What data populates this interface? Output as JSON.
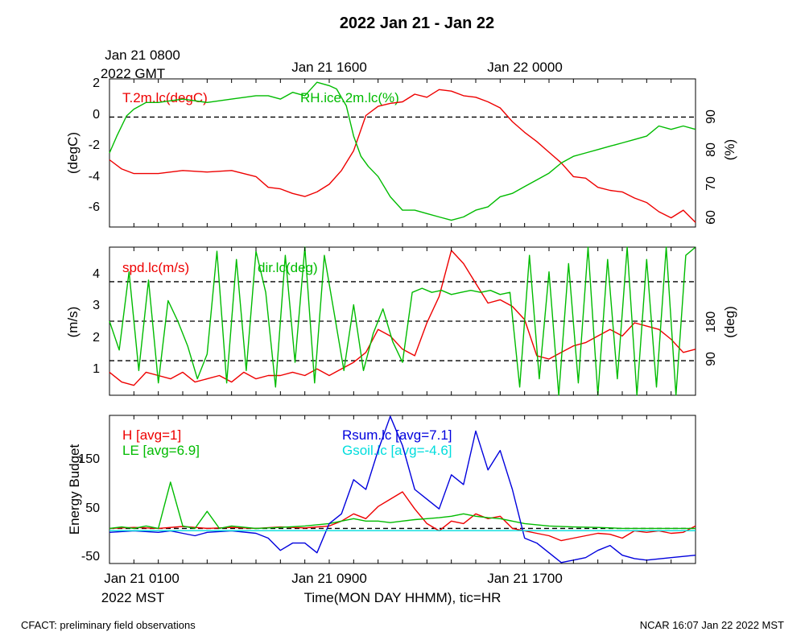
{
  "figure": {
    "title": "2022 Jan 21 - Jan 22",
    "top_axis_start_label": "Jan 21 0800",
    "top_axis_year_label": "2022 GMT",
    "top_axis_ticks": [
      "Jan 21 1600",
      "Jan 22 0000"
    ],
    "bottom_axis_ticks": [
      "Jan 21 0100",
      "Jan 21 0900",
      "Jan 21 1700"
    ],
    "bottom_axis_year_label": "2022 MST",
    "xlabel": "Time(MON DAY HHMM), tic=HR",
    "footer_left": "CFACT: preliminary field observations",
    "footer_right": "NCAR 16:07 Jan 22 2022 MST"
  },
  "chart_data": [
    {
      "type": "line",
      "x_range_hours_mst": [
        0,
        24
      ],
      "ylabel_left": "(degC)",
      "ylabel_right": "(%)",
      "ylim_left": [
        -7.2,
        2.5
      ],
      "ylim_right": [
        57,
        101
      ],
      "yticks_left": [
        "2",
        "0",
        "-2",
        "-4",
        "-6"
      ],
      "yticks_right": [
        "90",
        "80",
        "70",
        "60"
      ],
      "reference_lines_left": [
        0
      ],
      "series": [
        {
          "name": "T.2m.lc(degC)",
          "axis": "left",
          "color": "#ee0000",
          "x": [
            0,
            0.5,
            1,
            2,
            3,
            4,
            5,
            6,
            6.5,
            7,
            7.5,
            8,
            8.5,
            9,
            9.5,
            10,
            10.5,
            11,
            11.5,
            12,
            12.5,
            13,
            13.5,
            14,
            14.5,
            15,
            15.5,
            16,
            16.5,
            17,
            17.5,
            18,
            18.5,
            19,
            19.5,
            20,
            20.5,
            21,
            21.5,
            22,
            22.5,
            23,
            23.5,
            24
          ],
          "values": [
            -2.8,
            -3.4,
            -3.7,
            -3.7,
            -3.5,
            -3.6,
            -3.5,
            -3.9,
            -4.6,
            -4.7,
            -5.0,
            -5.2,
            -4.9,
            -4.4,
            -3.5,
            -2.2,
            0.1,
            0.7,
            0.9,
            1.0,
            1.5,
            1.3,
            1.8,
            1.7,
            1.4,
            1.3,
            1.0,
            0.6,
            -0.3,
            -1.0,
            -1.6,
            -2.3,
            -3.0,
            -3.9,
            -4.0,
            -4.6,
            -4.8,
            -4.9,
            -5.3,
            -5.6,
            -6.2,
            -6.6,
            -6.1,
            -6.9
          ]
        },
        {
          "name": "RH.ice.2m.lc(%)",
          "axis": "right",
          "color": "#00bb00",
          "x": [
            0,
            0.3,
            0.7,
            1,
            1.5,
            2,
            3,
            4,
            5,
            6,
            6.5,
            7,
            7.5,
            8,
            8.5,
            9,
            9.3,
            9.7,
            10,
            10.3,
            10.6,
            11,
            11.5,
            12,
            12.5,
            13,
            13.5,
            14,
            14.5,
            15,
            15.5,
            16,
            16.5,
            17,
            17.5,
            18,
            18.5,
            19,
            19.5,
            20,
            20.5,
            21,
            21.5,
            22,
            22.5,
            23,
            23.5,
            24
          ],
          "values": [
            79,
            84,
            90,
            92,
            94,
            94,
            95,
            94,
            95,
            96,
            96,
            95,
            97,
            96,
            100,
            99,
            98,
            93,
            84,
            78,
            75,
            72,
            66,
            62,
            62,
            61,
            60,
            59,
            60,
            62,
            63,
            66,
            67,
            69,
            71,
            73,
            76,
            78,
            79,
            80,
            81,
            82,
            83,
            84,
            87,
            86,
            87,
            86
          ]
        }
      ]
    },
    {
      "type": "line",
      "x_range_hours_mst": [
        0,
        24
      ],
      "ylabel_left": "(m/s)",
      "ylabel_right": "(deg)",
      "ylim_left": [
        0.2,
        4.7
      ],
      "ylim_right": [
        0,
        360
      ],
      "yticks_left": [
        "4",
        "3",
        "2",
        "1"
      ],
      "yticks_right": [
        "180",
        "90"
      ],
      "reference_lines_left": [
        3.65,
        2.45,
        1.25
      ],
      "series": [
        {
          "name": "spd.lc(m/s)",
          "axis": "left",
          "color": "#ee0000",
          "x": [
            0,
            0.5,
            1,
            1.5,
            2,
            2.5,
            3,
            3.5,
            4,
            4.5,
            5,
            5.5,
            6,
            6.5,
            7,
            7.5,
            8,
            8.5,
            9,
            9.5,
            10,
            10.5,
            11,
            11.5,
            12,
            12.5,
            13,
            13.5,
            14,
            14.5,
            15,
            15.5,
            16,
            16.5,
            17,
            17.5,
            18,
            18.5,
            19,
            19.5,
            20,
            20.5,
            21,
            21.5,
            22,
            22.5,
            23,
            23.5,
            24
          ],
          "values": [
            0.9,
            0.6,
            0.5,
            0.9,
            0.8,
            0.7,
            0.9,
            0.6,
            0.7,
            0.8,
            0.6,
            0.9,
            0.7,
            0.8,
            0.8,
            0.9,
            0.8,
            1.0,
            0.8,
            1.0,
            1.2,
            1.5,
            2.2,
            2.0,
            1.6,
            1.4,
            2.4,
            3.2,
            4.6,
            4.2,
            3.6,
            3.0,
            3.1,
            2.9,
            2.5,
            1.4,
            1.3,
            1.5,
            1.7,
            1.8,
            2.0,
            2.2,
            2.0,
            2.4,
            2.3,
            2.2,
            1.9,
            1.5,
            1.6
          ]
        },
        {
          "name": "dir.lc(deg)",
          "axis": "right",
          "color": "#00bb00",
          "x": [
            0,
            0.4,
            0.8,
            1.2,
            1.6,
            2.0,
            2.4,
            2.8,
            3.2,
            3.6,
            4.0,
            4.4,
            4.8,
            5.2,
            5.6,
            6.0,
            6.4,
            6.8,
            7.2,
            7.6,
            8.0,
            8.4,
            8.8,
            9.2,
            9.6,
            10.0,
            10.4,
            10.8,
            11.2,
            11.6,
            12.0,
            12.4,
            12.8,
            13.2,
            13.6,
            14.0,
            14.4,
            14.8,
            15.2,
            15.6,
            16.0,
            16.4,
            16.8,
            17.2,
            17.6,
            18.0,
            18.4,
            18.8,
            19.2,
            19.6,
            20.0,
            20.4,
            20.8,
            21.2,
            21.6,
            22.0,
            22.4,
            22.8,
            23.2,
            23.6,
            24.0
          ],
          "values": [
            180,
            110,
            300,
            60,
            280,
            30,
            230,
            180,
            120,
            40,
            100,
            350,
            30,
            330,
            60,
            350,
            250,
            20,
            340,
            80,
            360,
            30,
            340,
            200,
            60,
            220,
            60,
            150,
            210,
            130,
            80,
            250,
            260,
            250,
            255,
            245,
            250,
            255,
            250,
            255,
            245,
            250,
            20,
            340,
            40,
            300,
            0,
            320,
            30,
            360,
            0,
            330,
            40,
            360,
            0,
            330,
            20,
            360,
            0,
            340,
            360
          ]
        }
      ]
    },
    {
      "type": "line",
      "x_range_hours_mst": [
        0,
        24
      ],
      "ylabel": "Energy Budget",
      "ylim": [
        -72,
        232
      ],
      "yticks": [
        "150",
        "50",
        "-50"
      ],
      "reference_lines": [
        0
      ],
      "series": [
        {
          "name": "H",
          "legend_label": "H [avg=1]",
          "color": "#ee0000",
          "x": [
            0,
            1,
            2,
            3,
            4,
            5,
            6,
            7,
            8,
            9,
            9.5,
            10,
            10.5,
            11,
            11.5,
            12,
            12.5,
            13,
            13.5,
            14,
            14.5,
            15,
            15.5,
            16,
            16.5,
            17,
            17.5,
            18,
            18.5,
            19,
            19.5,
            20,
            20.5,
            21,
            21.5,
            22,
            22.5,
            23,
            23.5,
            24
          ],
          "values": [
            0,
            2,
            0,
            4,
            0,
            2,
            0,
            3,
            1,
            5,
            15,
            30,
            20,
            45,
            60,
            75,
            40,
            10,
            -5,
            15,
            10,
            30,
            20,
            25,
            0,
            -5,
            -10,
            -15,
            -25,
            -20,
            -15,
            -10,
            -12,
            -20,
            -5,
            -8,
            -5,
            -10,
            -8,
            5
          ]
        },
        {
          "name": "LE",
          "legend_label": "LE [avg=6.9]",
          "color": "#00bb00",
          "x": [
            0,
            0.5,
            1,
            1.5,
            2,
            2.5,
            3,
            3.5,
            4,
            4.5,
            5,
            6,
            7,
            8,
            9,
            9.5,
            10,
            10.5,
            11,
            11.5,
            12,
            12.5,
            13,
            13.5,
            14,
            14.5,
            15,
            15.5,
            16,
            17,
            18,
            19,
            20,
            21,
            22,
            23,
            24
          ],
          "values": [
            0,
            3,
            0,
            5,
            0,
            95,
            5,
            0,
            35,
            0,
            5,
            0,
            2,
            5,
            10,
            15,
            20,
            15,
            15,
            12,
            15,
            18,
            20,
            22,
            25,
            30,
            25,
            22,
            20,
            10,
            5,
            3,
            2,
            0,
            0,
            0,
            0
          ]
        },
        {
          "name": "Rsum.lc",
          "legend_label": "Rsum.lc [avg=7.1]",
          "color": "#0000dd",
          "x": [
            0,
            1,
            2,
            2.5,
            3,
            3.5,
            4,
            5,
            6,
            6.5,
            7,
            7.5,
            8,
            8.5,
            9,
            9.5,
            10,
            10.5,
            11,
            11.5,
            12,
            12.5,
            13,
            13.5,
            14,
            14.5,
            15,
            15.5,
            16,
            16.5,
            17,
            17.5,
            18,
            18.5,
            19,
            19.5,
            20,
            20.5,
            21,
            21.5,
            22,
            23,
            24
          ],
          "values": [
            -8,
            -5,
            -8,
            -5,
            -10,
            -15,
            -8,
            -5,
            -10,
            -20,
            -45,
            -30,
            -30,
            -50,
            10,
            30,
            100,
            80,
            160,
            230,
            170,
            80,
            60,
            40,
            110,
            90,
            200,
            120,
            160,
            80,
            -20,
            -30,
            -50,
            -70,
            -65,
            -60,
            -45,
            -35,
            -55,
            -62,
            -65,
            -60,
            -55
          ]
        },
        {
          "name": "Gsoil.lc",
          "legend_label": "Gsoil.lc [avg=-4.6]",
          "color": "#00dddd",
          "x": [
            0,
            6,
            12,
            18,
            24
          ],
          "values": [
            -4.6,
            -4.6,
            -4.6,
            -4.6,
            -4.6
          ]
        }
      ]
    }
  ]
}
